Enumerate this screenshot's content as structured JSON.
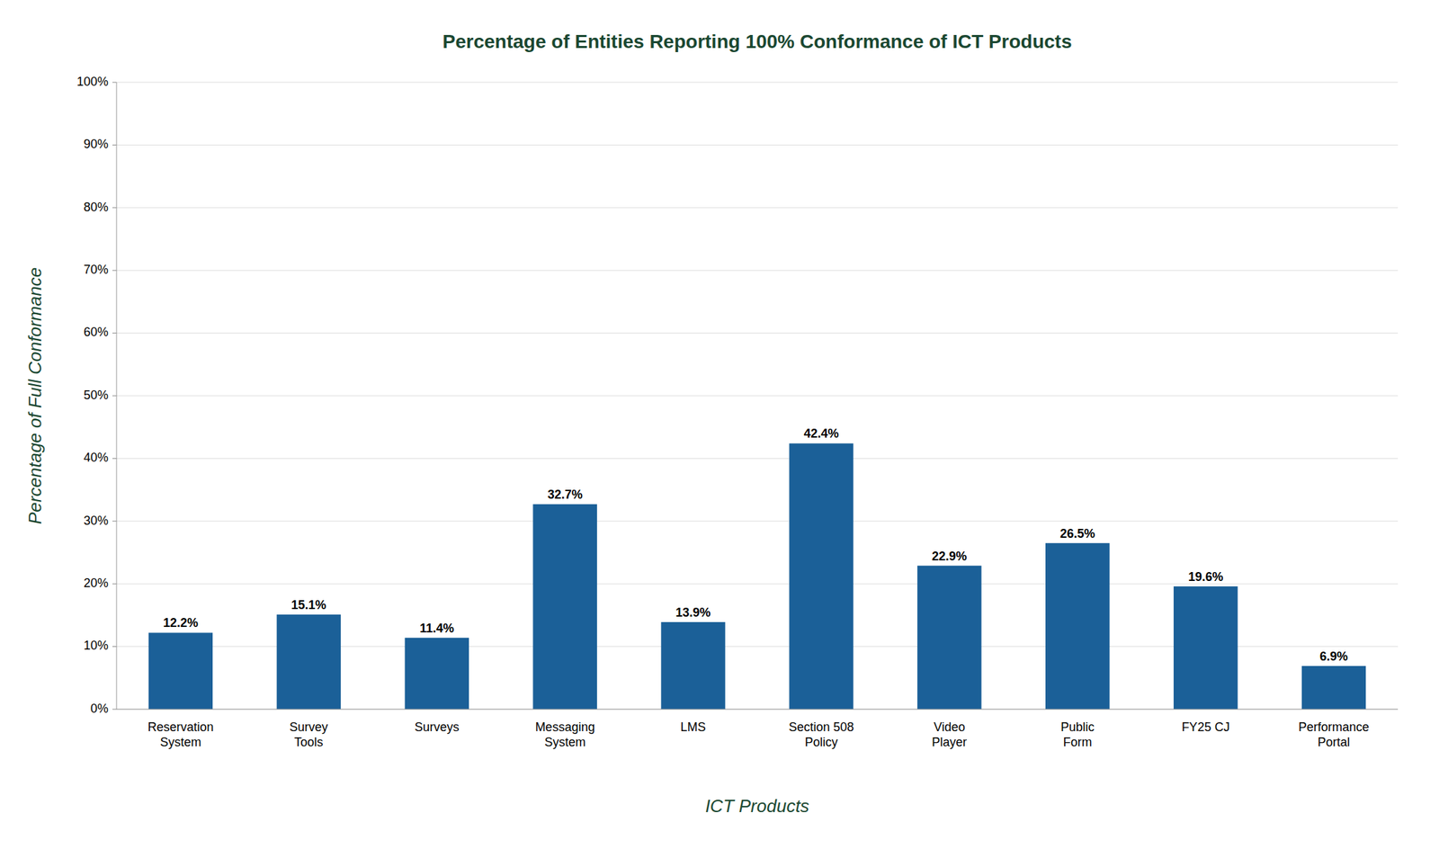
{
  "chart_data": {
    "type": "bar",
    "title": "Percentage of Entities Reporting 100% Conformance of ICT Products",
    "xlabel": "ICT Products",
    "ylabel": "Percentage of Full Conformance",
    "categories": [
      "Reservation\nSystem",
      "Survey\nTools",
      "Surveys",
      "Messaging\nSystem",
      "LMS",
      "Section 508\nPolicy",
      "Video\nPlayer",
      "Public\nForm",
      "FY25 CJ",
      "Performance\nPortal"
    ],
    "values": [
      12.2,
      15.1,
      11.4,
      32.7,
      13.9,
      42.4,
      22.9,
      26.5,
      19.6,
      6.9
    ],
    "value_labels": [
      "12.2%",
      "15.1%",
      "11.4%",
      "32.7%",
      "13.9%",
      "42.4%",
      "22.9%",
      "26.5%",
      "19.6%",
      "6.9%"
    ],
    "data_labels": true,
    "color": "#1B6098",
    "ylim": [
      0,
      100
    ],
    "yticks": [
      {
        "value": 0,
        "label": "0%"
      },
      {
        "value": 10,
        "label": "10%"
      },
      {
        "value": 20,
        "label": "20%"
      },
      {
        "value": 30,
        "label": "30%"
      },
      {
        "value": 40,
        "label": "40%"
      },
      {
        "value": 50,
        "label": "50%"
      },
      {
        "value": 60,
        "label": "60%"
      },
      {
        "value": 70,
        "label": "70%"
      },
      {
        "value": 80,
        "label": "80%"
      },
      {
        "value": 90,
        "label": "90%"
      },
      {
        "value": 100,
        "label": "100%"
      }
    ],
    "grid": true
  }
}
